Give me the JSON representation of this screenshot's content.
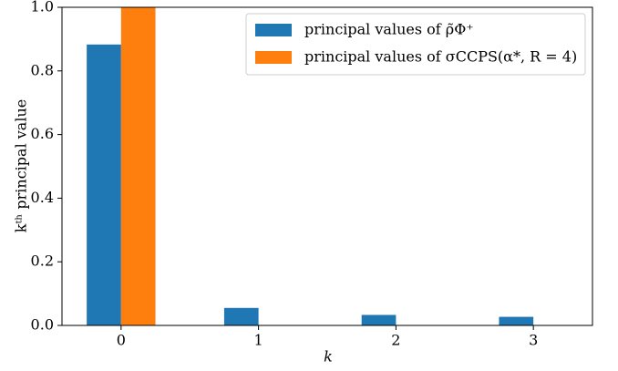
{
  "chart_data": {
    "type": "bar",
    "xlabel": "k",
    "ylabel": "kᵗʰ principal value",
    "categories": [
      "0",
      "1",
      "2",
      "3"
    ],
    "series": [
      {
        "name": "principal values of ρ̃Φ⁺",
        "color": "#1f77b4",
        "values": [
          0.883,
          0.055,
          0.033,
          0.027
        ]
      },
      {
        "name": "principal values of σCCPS(α*, R = 4)",
        "color": "#ff7f0e",
        "values": [
          1.0,
          0,
          0,
          0
        ]
      }
    ],
    "ylim": [
      0,
      1
    ],
    "yticks": [
      {
        "value": 0,
        "label": "0.0"
      },
      {
        "value": 0.2,
        "label": "0.2"
      },
      {
        "value": 0.4,
        "label": "0.4"
      },
      {
        "value": 0.6,
        "label": "0.6"
      },
      {
        "value": 0.8,
        "label": "0.8"
      },
      {
        "value": 1,
        "label": "1.0"
      }
    ],
    "legend": "upper right"
  }
}
